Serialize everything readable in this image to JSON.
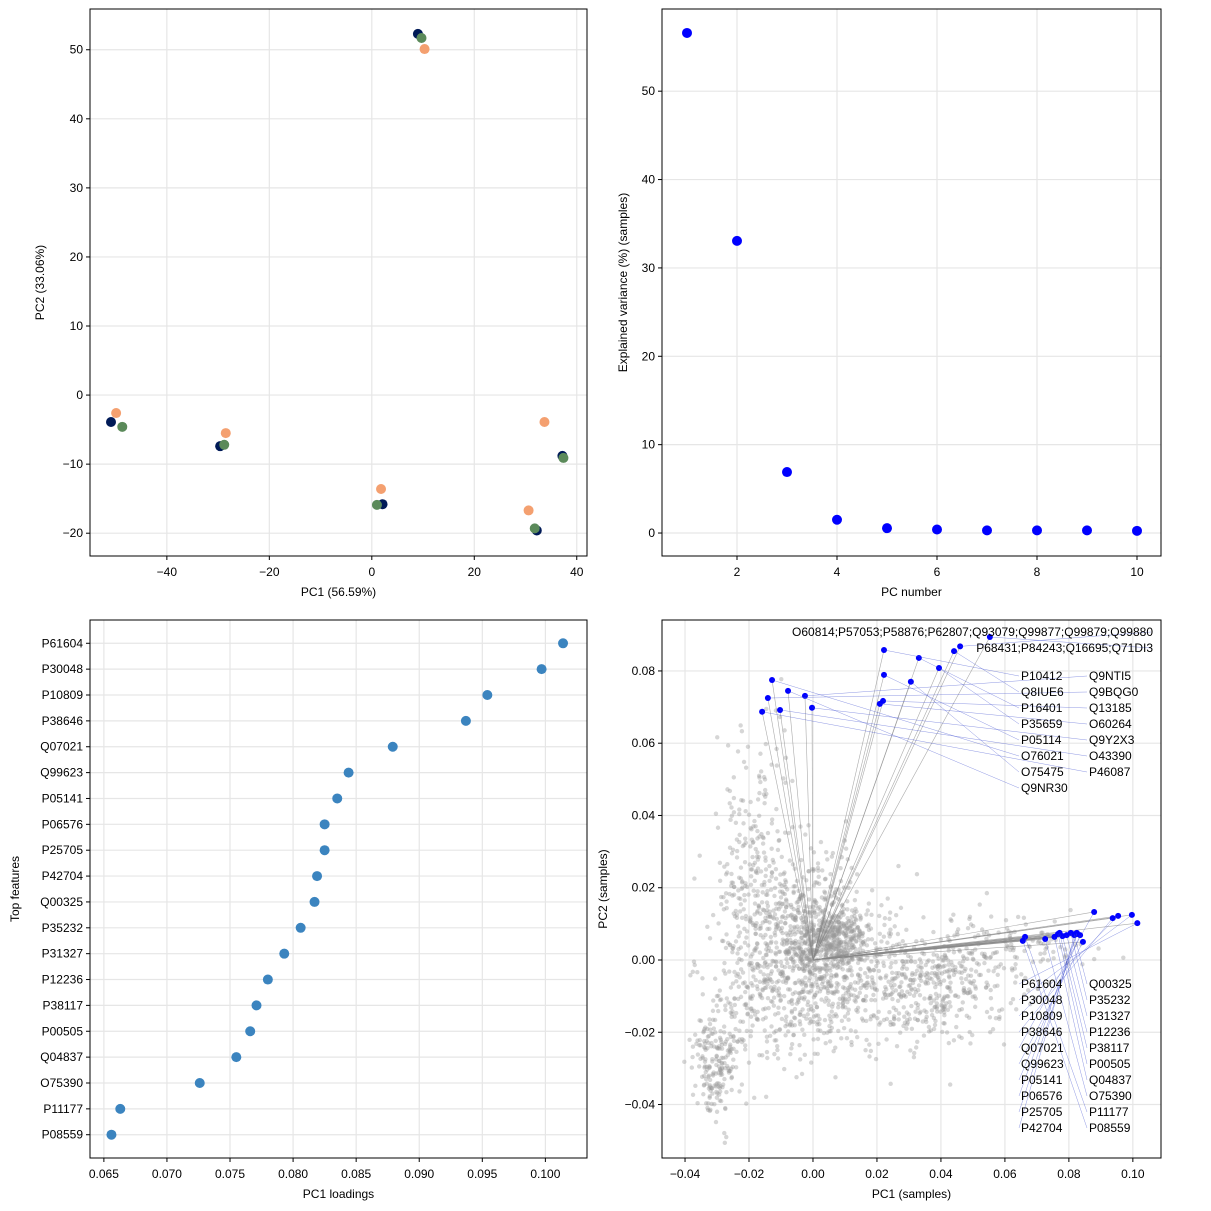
{
  "chart_data": [
    {
      "type": "scatter",
      "xlabel": "PC1 (56.59%)",
      "ylabel": "PC2 (33.06%)",
      "xlim": [
        -55,
        42
      ],
      "ylim": [
        -23.3,
        55.9
      ],
      "xticks": [
        -40,
        -20,
        0,
        20,
        40
      ],
      "yticks": [
        -20,
        -10,
        0,
        10,
        20,
        30,
        40,
        50
      ],
      "grid": true,
      "series": [
        {
          "color": "#f4a070",
          "points": [
            [
              10.3,
              50.1
            ],
            [
              -49.9,
              -2.6
            ],
            [
              -28.5,
              -5.5
            ],
            [
              1.8,
              -13.6
            ],
            [
              33.7,
              -3.9
            ],
            [
              30.6,
              -16.7
            ]
          ]
        },
        {
          "color": "#001a57",
          "points": [
            [
              9.0,
              52.3
            ],
            [
              -50.9,
              -3.9
            ],
            [
              -29.6,
              -7.4
            ],
            [
              2.1,
              -15.8
            ],
            [
              37.2,
              -8.8
            ],
            [
              32.2,
              -19.6
            ]
          ]
        },
        {
          "color": "#5b8a5a",
          "points": [
            [
              9.7,
              51.7
            ],
            [
              -48.7,
              -4.6
            ],
            [
              -28.8,
              -7.2
            ],
            [
              1.0,
              -15.9
            ],
            [
              37.4,
              -9.1
            ],
            [
              31.8,
              -19.3
            ]
          ]
        }
      ]
    },
    {
      "type": "scatter",
      "xlabel": "PC number",
      "ylabel": "Explained variance (%) (samples)",
      "xlim": [
        0.5,
        10.48
      ],
      "ylim": [
        -2.6,
        59.3
      ],
      "xticks": [
        2,
        4,
        6,
        8,
        10
      ],
      "yticks": [
        0,
        10,
        20,
        30,
        40,
        50
      ],
      "grid": true,
      "color": "#0000ff",
      "x": [
        1,
        2,
        3,
        4,
        5,
        6,
        7,
        8,
        9,
        10
      ],
      "y": [
        56.59,
        33.06,
        6.9,
        1.5,
        0.55,
        0.4,
        0.3,
        0.3,
        0.3,
        0.25
      ]
    },
    {
      "type": "scatter",
      "xlabel": "PC1 loadings",
      "ylabel": "Top features",
      "xlim": [
        0.0639,
        0.1033
      ],
      "xticks": [
        "0.065",
        "0.070",
        "0.075",
        "0.080",
        "0.085",
        "0.090",
        "0.095",
        "0.100"
      ],
      "grid": true,
      "color": "#3b84bf",
      "categories": [
        "P61604",
        "P30048",
        "P10809",
        "P38646",
        "Q07021",
        "Q99623",
        "P05141",
        "P06576",
        "P25705",
        "P42704",
        "Q00325",
        "P35232",
        "P31327",
        "P12236",
        "P38117",
        "P00505",
        "Q04837",
        "O75390",
        "P11177",
        "P08559"
      ],
      "values": [
        0.1014,
        0.0997,
        0.0954,
        0.0937,
        0.0879,
        0.0844,
        0.0835,
        0.0825,
        0.0825,
        0.0819,
        0.0817,
        0.0806,
        0.0793,
        0.078,
        0.0771,
        0.0766,
        0.0755,
        0.0726,
        0.0663,
        0.0656
      ]
    },
    {
      "type": "scatter",
      "subtype": "biplot",
      "xlabel": "PC1 (samples)",
      "ylabel": "PC2 (samples)",
      "xlim": [
        -0.0472,
        0.1088
      ],
      "ylim": [
        -0.0548,
        0.0941
      ],
      "xticks": [
        "−0.04",
        "−0.02",
        "0.00",
        "0.02",
        "0.04",
        "0.06",
        "0.08",
        "0.10"
      ],
      "xtick_values": [
        -0.04,
        -0.02,
        0,
        0.02,
        0.04,
        0.06,
        0.08,
        0.1
      ],
      "yticks": [
        "−0.04",
        "−0.02",
        "0.00",
        "0.02",
        "0.04",
        "0.06",
        "0.08"
      ],
      "ytick_values": [
        -0.04,
        -0.02,
        0,
        0.02,
        0.04,
        0.06,
        0.08
      ],
      "grid": true,
      "background_color": "#999999",
      "highlight_color": "#0000ff",
      "labeled_points": [
        {
          "label": "P61604",
          "x": 0.1014,
          "y": 0.0102
        },
        {
          "label": "P30048",
          "x": 0.0997,
          "y": 0.0125
        },
        {
          "label": "P10809",
          "x": 0.0954,
          "y": 0.0122
        },
        {
          "label": "P38646",
          "x": 0.0937,
          "y": 0.0116
        },
        {
          "label": "Q07021",
          "x": 0.0879,
          "y": 0.0133
        },
        {
          "label": "Q99623",
          "x": 0.0844,
          "y": 0.005
        },
        {
          "label": "P05141",
          "x": 0.0835,
          "y": 0.0069
        },
        {
          "label": "P06576",
          "x": 0.0825,
          "y": 0.0075
        },
        {
          "label": "P25705",
          "x": 0.0825,
          "y": 0.0072
        },
        {
          "label": "P42704",
          "x": 0.0819,
          "y": 0.0072
        },
        {
          "label": "Q00325",
          "x": 0.0817,
          "y": 0.0069
        },
        {
          "label": "P35232",
          "x": 0.0806,
          "y": 0.0075
        },
        {
          "label": "P31327",
          "x": 0.0793,
          "y": 0.0069
        },
        {
          "label": "P12236",
          "x": 0.078,
          "y": 0.0066
        },
        {
          "label": "P38117",
          "x": 0.0771,
          "y": 0.0075
        },
        {
          "label": "P00505",
          "x": 0.0766,
          "y": 0.0072
        },
        {
          "label": "Q04837",
          "x": 0.0755,
          "y": 0.0064
        },
        {
          "label": "O75390",
          "x": 0.0726,
          "y": 0.0058
        },
        {
          "label": "P11177",
          "x": 0.0663,
          "y": 0.0064
        },
        {
          "label": "P08559",
          "x": 0.0656,
          "y": 0.0053
        },
        {
          "label": "O76021",
          "x": -0.0128,
          "y": 0.0775
        },
        {
          "label": "Q9NR30",
          "x": -0.0078,
          "y": 0.0745
        },
        {
          "label": "Q9NTI5",
          "x": -0.0025,
          "y": 0.0731
        },
        {
          "label": "Q9BQG0",
          "x": -0.0141,
          "y": 0.0725
        },
        {
          "label": "Q9Y2X3",
          "x": -0.0003,
          "y": 0.0698
        },
        {
          "label": "P46087",
          "x": -0.0159,
          "y": 0.0687
        },
        {
          "label": "O43390",
          "x": -0.0103,
          "y": 0.0692
        },
        {
          "label": "O60264",
          "x": 0.0209,
          "y": 0.0709
        },
        {
          "label": "Q13185",
          "x": 0.0219,
          "y": 0.0717
        },
        {
          "label": "P05114",
          "x": 0.0222,
          "y": 0.0789
        },
        {
          "label": "O75475",
          "x": 0.0306,
          "y": 0.077
        },
        {
          "label": "P35659",
          "x": 0.0394,
          "y": 0.0808
        },
        {
          "label": "P16401",
          "x": 0.0331,
          "y": 0.0836
        },
        {
          "label": "Q8IUE6",
          "x": 0.0441,
          "y": 0.0855
        },
        {
          "label": "P10412",
          "x": 0.0222,
          "y": 0.0858
        },
        {
          "label": "O60814;P57053;P58876;P62807;Q93079;Q99877;Q99879;Q99880",
          "x": 0.046,
          "y": 0.0868
        },
        {
          "label": "P68431;P84243;Q16695;Q71DI3",
          "x": 0.0553,
          "y": 0.0894
        }
      ]
    }
  ]
}
